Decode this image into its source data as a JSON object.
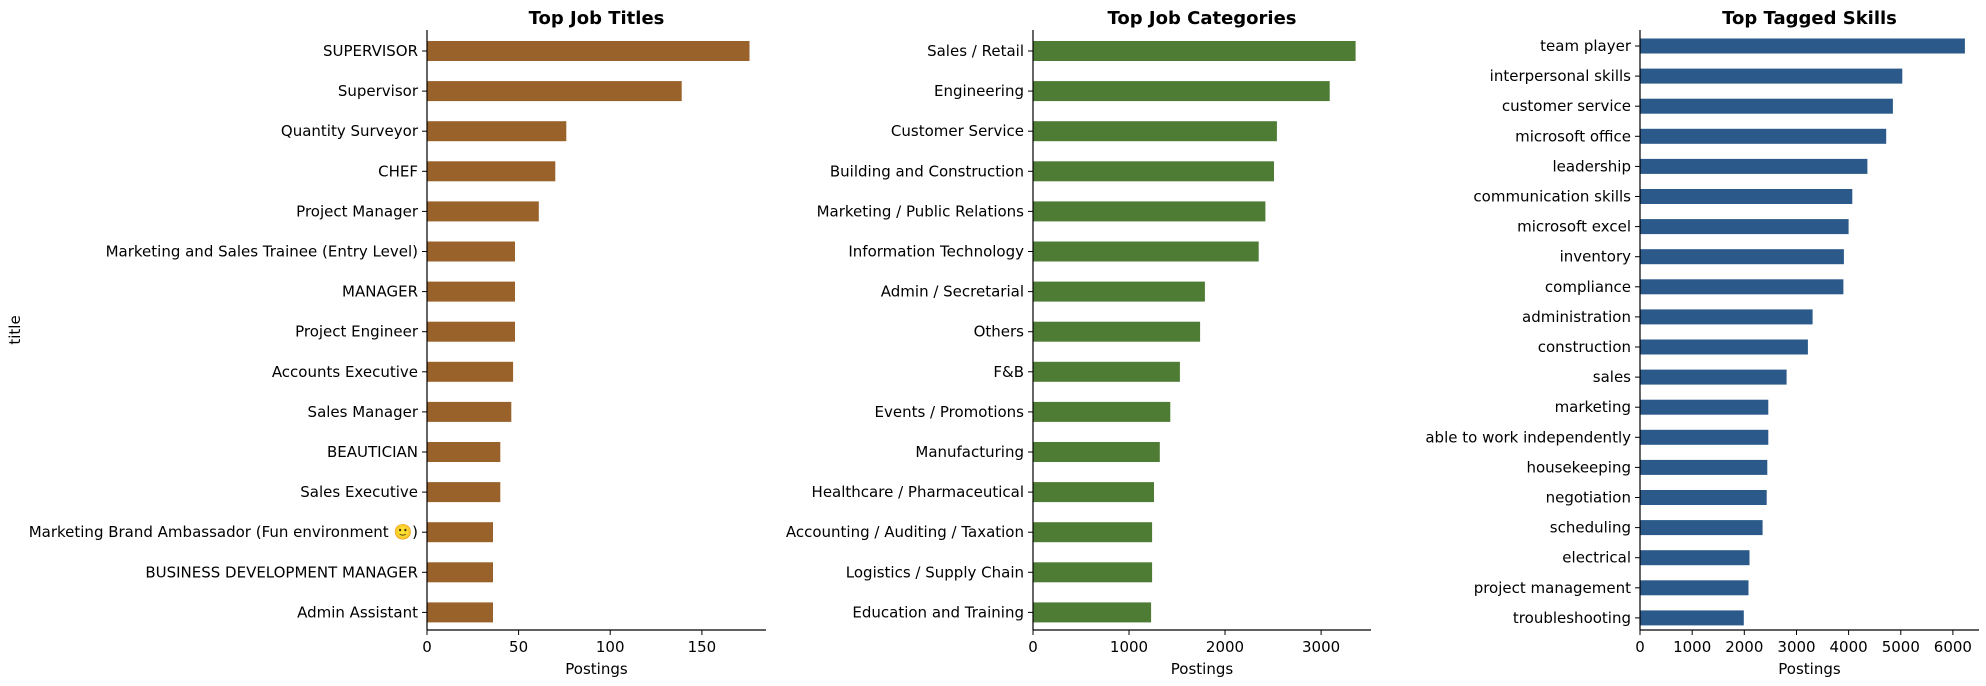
{
  "chart_data": [
    {
      "type": "bar",
      "orientation": "horizontal",
      "title": "Top Job Titles",
      "xlabel": "Postings",
      "ylabel": "title",
      "color": "#9a622b",
      "xlim": [
        0,
        185
      ],
      "xticks": [
        0,
        50,
        100,
        150
      ],
      "grid": false,
      "categories": [
        "SUPERVISOR",
        "Supervisor",
        "Quantity Surveyor",
        "CHEF",
        "Project Manager",
        "Marketing and Sales Trainee (Entry Level)",
        "MANAGER",
        "Project Engineer",
        "Accounts Executive",
        "Sales Manager",
        "BEAUTICIAN",
        "Sales Executive",
        "Marketing Brand Ambassador (Fun environment 🙂)",
        "BUSINESS DEVELOPMENT MANAGER",
        "Admin Assistant"
      ],
      "values": [
        176,
        139,
        76,
        70,
        61,
        48,
        48,
        48,
        47,
        46,
        40,
        40,
        36,
        36,
        36
      ]
    },
    {
      "type": "bar",
      "orientation": "horizontal",
      "title": "Top Job Categories",
      "xlabel": "Postings",
      "ylabel": "",
      "color": "#4f7c35",
      "xlim": [
        0,
        3520
      ],
      "xticks": [
        0,
        1000,
        2000,
        3000
      ],
      "grid": false,
      "categories": [
        "Sales / Retail",
        "Engineering",
        "Customer Service",
        "Building and Construction",
        "Marketing / Public Relations",
        "Information Technology",
        "Admin / Secretarial",
        "Others",
        "F&B",
        "Events / Promotions",
        "Manufacturing",
        "Healthcare / Pharmaceutical",
        "Accounting / Auditing / Taxation",
        "Logistics / Supply Chain",
        "Education and Training"
      ],
      "values": [
        3360,
        3090,
        2540,
        2510,
        2420,
        2350,
        1790,
        1740,
        1530,
        1430,
        1320,
        1260,
        1240,
        1240,
        1230
      ]
    },
    {
      "type": "bar",
      "orientation": "horizontal",
      "title": "Top Tagged Skills",
      "xlabel": "Postings",
      "ylabel": "",
      "color": "#2b5a8a",
      "xlim": [
        0,
        6500
      ],
      "xticks": [
        0,
        1000,
        2000,
        3000,
        4000,
        5000,
        6000
      ],
      "grid": false,
      "categories": [
        "team player",
        "interpersonal skills",
        "customer service",
        "microsoft office",
        "leadership",
        "communication skills",
        "microsoft excel",
        "inventory",
        "compliance",
        "administration",
        "construction",
        "sales",
        "marketing",
        "able to work independently",
        "housekeeping",
        "negotiation",
        "scheduling",
        "electrical",
        "project management",
        "troubleshooting"
      ],
      "values": [
        6230,
        5030,
        4850,
        4720,
        4360,
        4070,
        4000,
        3910,
        3900,
        3310,
        3220,
        2810,
        2460,
        2460,
        2440,
        2430,
        2350,
        2100,
        2080,
        1990
      ]
    }
  ]
}
